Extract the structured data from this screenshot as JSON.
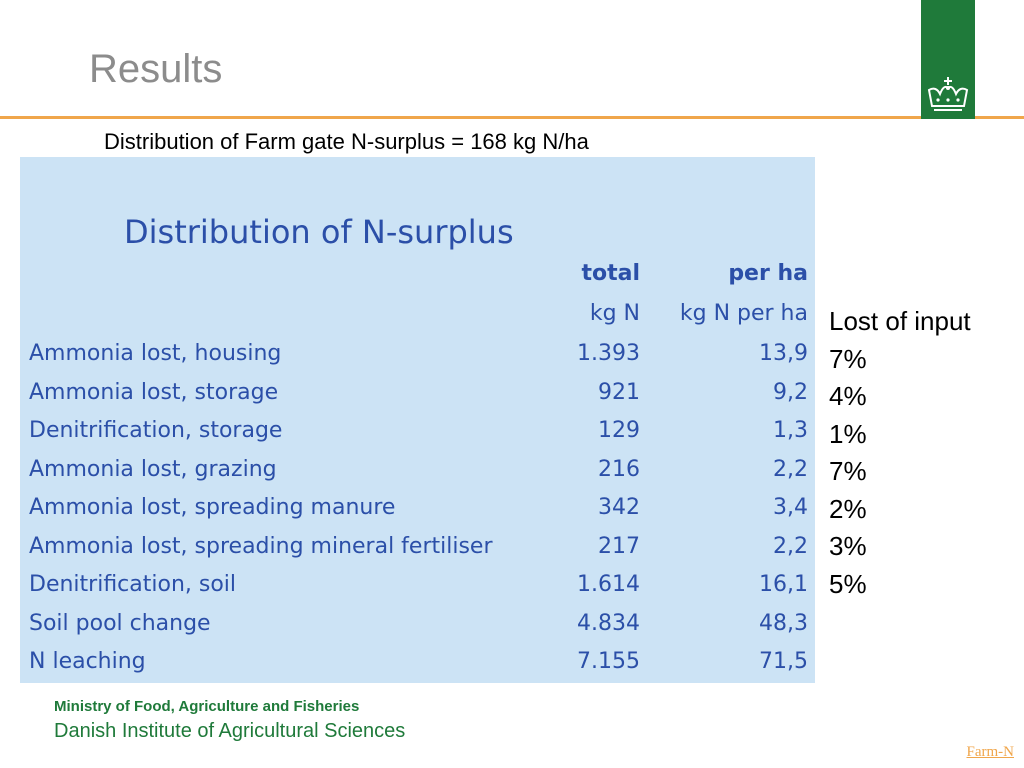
{
  "slide": {
    "title": "Results",
    "subtitle": "Distribution of Farm gate N-surplus = 168 kg N/ha"
  },
  "table": {
    "heading": "Distribution of N-surplus",
    "columns": [
      {
        "header": "total",
        "unit": "kg N"
      },
      {
        "header": "per ha",
        "unit": "kg N per ha"
      }
    ],
    "rows": [
      {
        "label": "Ammonia lost, housing",
        "total": "1.393",
        "per_ha": "13,9"
      },
      {
        "label": "Ammonia lost, storage",
        "total": "921",
        "per_ha": "9,2"
      },
      {
        "label": "Denitrification, storage",
        "total": "129",
        "per_ha": "1,3"
      },
      {
        "label": "Ammonia lost, grazing",
        "total": "216",
        "per_ha": "2,2"
      },
      {
        "label": "Ammonia lost, spreading manure",
        "total": "342",
        "per_ha": "3,4"
      },
      {
        "label": "Ammonia lost, spreading mineral fertiliser",
        "total": "217",
        "per_ha": "2,2"
      },
      {
        "label": "Denitrification, soil",
        "total": "1.614",
        "per_ha": "16,1"
      },
      {
        "label": "Soil pool change",
        "total": "4.834",
        "per_ha": "48,3"
      },
      {
        "label": "N leaching",
        "total": "7.155",
        "per_ha": "71,5"
      }
    ]
  },
  "side_note": {
    "heading": "Lost of input",
    "values": [
      "7%",
      "4%",
      "1%",
      "7%",
      "2%",
      "3%",
      "5%"
    ]
  },
  "footer": {
    "ministry": "Ministry of Food, Agriculture and Fisheries",
    "institute": "Danish Institute of Agricultural Sciences",
    "link": "Farm-N"
  },
  "colors": {
    "accent_rule": "#f0a64b",
    "logo_green": "#1f7a3a",
    "table_bg": "#cce3f5",
    "table_text": "#2b4fa8"
  },
  "icons": {
    "logo": "crown-icon"
  }
}
